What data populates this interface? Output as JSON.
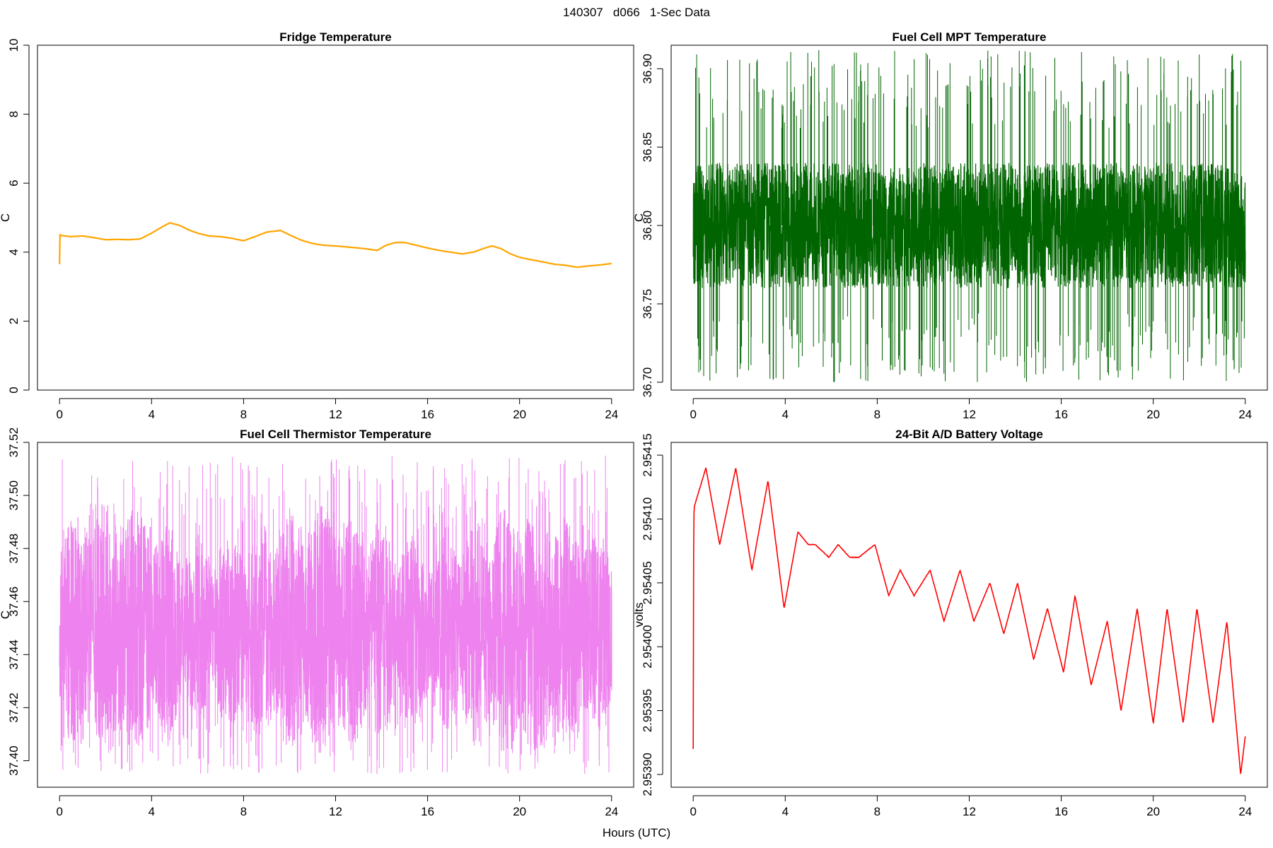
{
  "figure": {
    "suptitle": "140307   d066   1-Sec Data",
    "xlabel": "Hours (UTC)"
  },
  "chart_data": [
    {
      "type": "line",
      "title": "Fridge Temperature",
      "xlabel": "",
      "ylabel": "C",
      "color": "#ffa500",
      "xlim": [
        0,
        24
      ],
      "ylim": [
        0,
        10
      ],
      "x_ticks": [
        0,
        4,
        8,
        12,
        16,
        20,
        24
      ],
      "y_ticks": [
        0,
        2,
        4,
        6,
        8,
        10
      ],
      "y_tick_labels": [
        "0",
        "2",
        "4",
        "6",
        "8",
        "10"
      ],
      "series": [
        {
          "x": [
            0,
            0.01,
            0.02,
            0.1,
            0.5,
            1.0,
            1.5,
            2.0,
            2.5,
            3.0,
            3.5,
            4.0,
            4.5,
            4.8,
            5.2,
            5.6,
            6.0,
            6.5,
            7.0,
            7.5,
            8.0,
            8.5,
            9.0,
            9.6,
            10.0,
            10.5,
            11.0,
            11.5,
            12.0,
            12.5,
            13.0,
            13.5,
            13.8,
            14.2,
            14.6,
            15.0,
            15.5,
            16.0,
            16.5,
            17.0,
            17.5,
            18.0,
            18.5,
            18.8,
            19.2,
            19.6,
            20.0,
            20.5,
            21.0,
            21.5,
            22.0,
            22.5,
            23.0,
            23.5,
            24.0
          ],
          "y": [
            3.65,
            4.5,
            4.5,
            4.48,
            4.45,
            4.47,
            4.42,
            4.36,
            4.37,
            4.36,
            4.38,
            4.55,
            4.75,
            4.85,
            4.78,
            4.65,
            4.55,
            4.47,
            4.45,
            4.4,
            4.33,
            4.45,
            4.58,
            4.63,
            4.5,
            4.35,
            4.25,
            4.2,
            4.18,
            4.15,
            4.12,
            4.08,
            4.05,
            4.2,
            4.28,
            4.28,
            4.2,
            4.12,
            4.05,
            4.0,
            3.95,
            4.0,
            4.12,
            4.18,
            4.1,
            3.95,
            3.85,
            3.78,
            3.72,
            3.65,
            3.62,
            3.56,
            3.6,
            3.63,
            3.67
          ]
        }
      ]
    },
    {
      "type": "line",
      "title": "Fuel Cell MPT Temperature",
      "xlabel": "",
      "ylabel": "C",
      "color": "#006400",
      "xlim": [
        0,
        24
      ],
      "ylim": [
        36.695,
        36.915
      ],
      "x_ticks": [
        0,
        4,
        8,
        12,
        16,
        20,
        24
      ],
      "y_ticks": [
        36.7,
        36.75,
        36.8,
        36.85,
        36.9
      ],
      "y_tick_labels": [
        "36.70",
        "36.75",
        "36.80",
        "36.85",
        "36.90"
      ],
      "series": [
        {
          "mean": 36.8,
          "band": [
            36.76,
            36.84
          ],
          "extremes": [
            36.7,
            36.912
          ]
        }
      ]
    },
    {
      "type": "line",
      "title": "Fuel Cell Thermistor Temperature",
      "xlabel": "",
      "ylabel": "C",
      "color": "#ee82ee",
      "xlim": [
        0,
        24
      ],
      "ylim": [
        37.39,
        37.52
      ],
      "x_ticks": [
        0,
        4,
        8,
        12,
        16,
        20,
        24
      ],
      "y_ticks": [
        37.4,
        37.42,
        37.44,
        37.46,
        37.48,
        37.5,
        37.52
      ],
      "y_tick_labels": [
        "37.40",
        "37.42",
        "37.44",
        "37.46",
        "37.48",
        "37.50",
        "37.52"
      ],
      "series": [
        {
          "mean": 37.449,
          "extremes": [
            37.395,
            37.515
          ]
        }
      ]
    },
    {
      "type": "line",
      "title": "24-Bit A/D Battery Voltage",
      "xlabel": "",
      "ylabel": "volts",
      "color": "#ff0000",
      "xlim": [
        0,
        24
      ],
      "ylim": [
        2.95389,
        2.95416
      ],
      "x_ticks": [
        0,
        4,
        8,
        12,
        16,
        20,
        24
      ],
      "y_ticks": [
        2.9539,
        2.95395,
        2.954,
        2.95405,
        2.9541,
        2.95415
      ],
      "y_tick_labels": [
        "2.95390",
        "2.95395",
        "2.95400",
        "2.95405",
        "2.95410",
        "2.95415"
      ],
      "series": [
        {
          "x": [
            0,
            0.02,
            0.05,
            0.55,
            1.15,
            1.85,
            2.55,
            3.25,
            3.95,
            4.55,
            5.0,
            5.3,
            5.9,
            6.3,
            6.8,
            7.2,
            7.9,
            8.5,
            9.0,
            9.6,
            10.3,
            10.9,
            11.6,
            12.2,
            12.9,
            13.5,
            14.1,
            14.8,
            15.4,
            16.1,
            16.6,
            17.3,
            18.0,
            18.6,
            19.3,
            20.0,
            20.6,
            21.3,
            21.9,
            22.6,
            23.2,
            23.8,
            24.0
          ],
          "y": [
            2.95392,
            2.9541,
            2.95411,
            2.95414,
            2.95408,
            2.95414,
            2.95406,
            2.95413,
            2.95403,
            2.95409,
            2.95408,
            2.95408,
            2.95407,
            2.95408,
            2.95407,
            2.95407,
            2.95408,
            2.95404,
            2.95406,
            2.95404,
            2.95406,
            2.95402,
            2.95406,
            2.95402,
            2.95405,
            2.95401,
            2.95405,
            2.95399,
            2.95403,
            2.95398,
            2.95404,
            2.95397,
            2.95402,
            2.95395,
            2.95403,
            2.95394,
            2.95403,
            2.95394,
            2.95403,
            2.95394,
            2.95402,
            2.9539,
            2.95393
          ]
        }
      ]
    }
  ]
}
